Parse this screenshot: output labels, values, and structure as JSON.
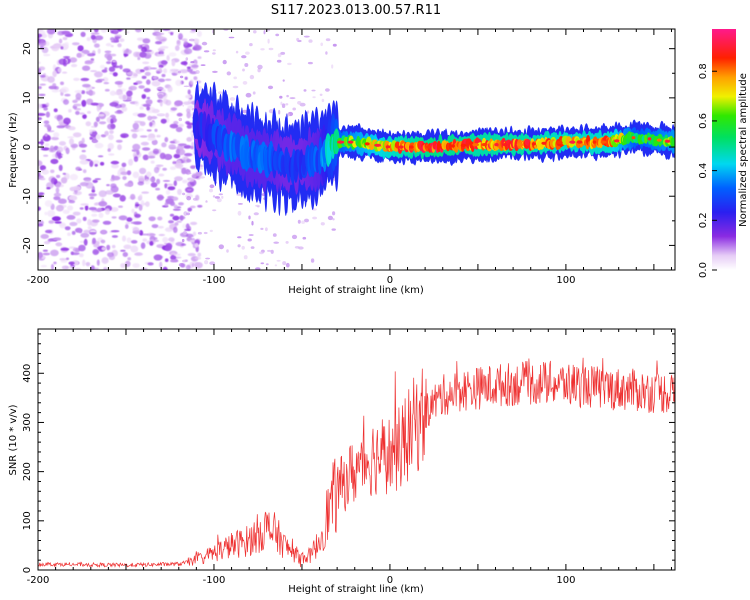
{
  "chart_data": [
    {
      "type": "heatmap",
      "title": "S117.2023.013.00.57.R11",
      "xlabel": "Height of straight line (km)",
      "ylabel": "Frequency (Hz)",
      "xlim": [
        -200,
        162
      ],
      "ylim": [
        -25,
        24
      ],
      "x_ticks": [
        -200,
        -100,
        0,
        100
      ],
      "y_ticks": [
        -20,
        -10,
        0,
        10,
        20
      ],
      "colorbar": {
        "label": "Normalized spectral amplitude",
        "range": [
          0.0,
          0.97
        ],
        "ticks": [
          0.0,
          0.2,
          0.4,
          0.6,
          0.8
        ],
        "colormap": "rainbow (violet-blue-cyan-green-yellow-orange-red-magenta)"
      },
      "ridge": {
        "x": [
          -110,
          -100,
          -90,
          -80,
          -70,
          -60,
          -50,
          -40,
          -30,
          -20,
          0,
          25,
          50,
          75,
          100,
          125,
          140,
          162
        ],
        "frequency": [
          4,
          2.5,
          0.5,
          -1.5,
          -2.5,
          -3.5,
          -3.5,
          -2,
          1,
          1,
          0,
          0,
          0.5,
          0.5,
          1,
          1,
          2,
          1
        ],
        "amplitude": [
          0.25,
          0.3,
          0.35,
          0.35,
          0.35,
          0.3,
          0.3,
          0.35,
          0.6,
          0.7,
          0.85,
          0.95,
          0.9,
          0.9,
          0.85,
          0.85,
          0.6,
          0.7
        ]
      },
      "noise_region": {
        "x": [
          -200,
          -120
        ],
        "amplitude": 0.1
      }
    },
    {
      "type": "line",
      "xlabel": "Height of straight line (km)",
      "ylabel": "SNR (10 * v/v)",
      "xlim": [
        -200,
        162
      ],
      "ylim": [
        0,
        490
      ],
      "x_ticks": [
        -200,
        -100,
        0,
        100
      ],
      "y_ticks": [
        0,
        100,
        200,
        300,
        400
      ],
      "color": "#ee3030",
      "series": [
        {
          "x": [
            -200,
            -150,
            -120,
            -110,
            -100,
            -90,
            -80,
            -75,
            -70,
            -65,
            -60,
            -55,
            -50,
            -45,
            -40,
            -35,
            -30,
            -25,
            -20,
            -15,
            -10,
            -5,
            0,
            5,
            10,
            15,
            20,
            25,
            30,
            40,
            50,
            60,
            70,
            80,
            90,
            100,
            110,
            120,
            130,
            140,
            150,
            162
          ],
          "values": [
            12,
            10,
            12,
            20,
            35,
            50,
            60,
            75,
            85,
            75,
            50,
            35,
            25,
            30,
            60,
            120,
            160,
            185,
            200,
            220,
            230,
            235,
            235,
            245,
            270,
            300,
            320,
            340,
            355,
            365,
            370,
            375,
            378,
            380,
            380,
            378,
            375,
            370,
            368,
            365,
            362,
            360
          ]
        }
      ]
    }
  ]
}
